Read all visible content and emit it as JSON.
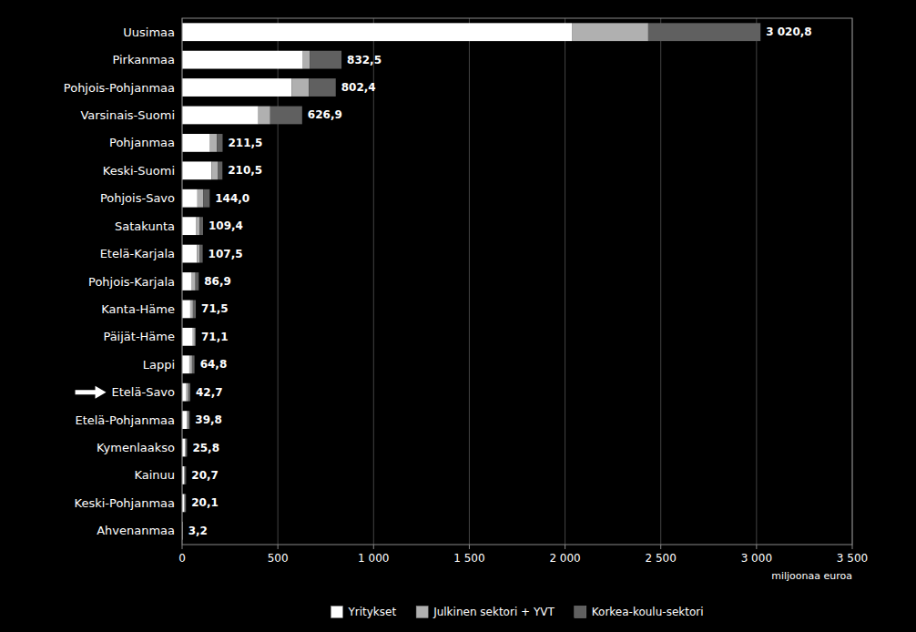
{
  "chart_data": {
    "type": "bar",
    "orientation": "horizontal",
    "stacked": true,
    "categories": [
      "Uusimaa",
      "Pirkanmaa",
      "Pohjois-Pohjanmaa",
      "Varsinais-Suomi",
      "Pohjanmaa",
      "Keski-Suomi",
      "Pohjois-Savo",
      "Satakunta",
      "Etelä-Karjala",
      "Pohjois-Karjala",
      "Kanta-Häme",
      "Päijät-Häme",
      "Lappi",
      "Etelä-Savo",
      "Etelä-Pohjanmaa",
      "Kymenlaakso",
      "Kainuu",
      "Keski-Pohjanmaa",
      "Ahvenanmaa"
    ],
    "series": [
      {
        "name": "Yritykset",
        "color": "#ffffff",
        "values": [
          2035.6,
          631.0,
          571.5,
          398.2,
          146.1,
          154.0,
          80.0,
          74.4,
          78.5,
          50.9,
          42.5,
          56.1,
          37.8,
          22.7,
          24.8,
          16.8,
          10.7,
          12.1,
          2.2
        ]
      },
      {
        "name": "Julkinen sektori + YVT",
        "color": "#b0b0b0",
        "values": [
          398.7,
          35.3,
          91.2,
          62.1,
          35.4,
          31.5,
          30.0,
          18.0,
          14.0,
          19.0,
          14.0,
          10.0,
          14.0,
          10.0,
          8.0,
          5.0,
          5.0,
          5.0,
          0.5
        ]
      },
      {
        "name": "Korkea-koulu-sektori",
        "color": "#606060",
        "values": [
          586.5,
          166.2,
          139.7,
          166.6,
          30.0,
          25.0,
          34.0,
          17.0,
          15.0,
          17.0,
          15.0,
          5.0,
          13.0,
          10.0,
          7.0,
          4.0,
          5.0,
          3.0,
          0.5
        ]
      }
    ],
    "totals": [
      3020.8,
      832.5,
      802.4,
      626.9,
      211.5,
      210.5,
      144.0,
      109.4,
      107.5,
      86.9,
      71.5,
      71.1,
      64.8,
      42.7,
      39.8,
      25.8,
      20.7,
      20.1,
      3.2
    ],
    "total_labels": [
      "3 020,8",
      "832,5",
      "802,4",
      "626,9",
      "211,5",
      "210,5",
      "144,0",
      "109,4",
      "107,5",
      "86,9",
      "71,5",
      "71,1",
      "64,8",
      "42,7",
      "39,8",
      "25,8",
      "20,7",
      "20,1",
      "3,2"
    ],
    "xlabel": "miljoonaa euroa",
    "xlim": [
      0,
      3500
    ],
    "xticks": [
      0,
      500,
      {
        "value": 1000,
        "label": "1 000"
      },
      {
        "value": 1500,
        "label": "1 500"
      },
      {
        "value": 2000,
        "label": "2 000"
      },
      {
        "value": 2500,
        "label": "2 500"
      },
      {
        "value": 3000,
        "label": "3 000"
      },
      {
        "value": 3500,
        "label": "3 500"
      }
    ],
    "annotations": [
      {
        "category": "Etelä-Savo",
        "type": "arrow"
      }
    ],
    "grid": true,
    "legend": "bottom"
  }
}
